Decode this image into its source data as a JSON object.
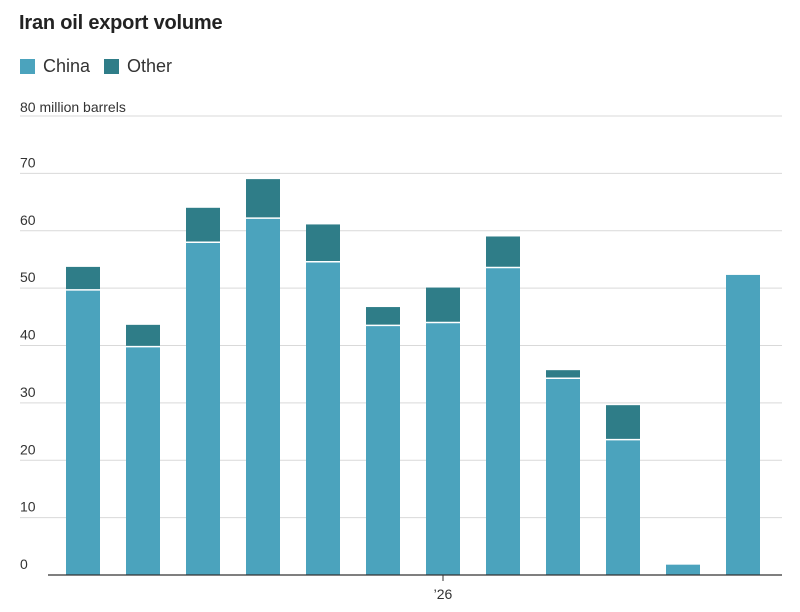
{
  "chart_data": {
    "type": "bar",
    "stacked": true,
    "title": "Iran oil export volume",
    "unit_label": "80 million barrels",
    "ylim": [
      0,
      80
    ],
    "yticks": [
      0,
      10,
      20,
      30,
      40,
      50,
      60,
      70
    ],
    "x_label_text": "’26",
    "x_label_index": 6,
    "series": [
      {
        "name": "China",
        "color": "#4ba3bd",
        "values": [
          49.7,
          39.8,
          58.0,
          62.2,
          54.6,
          43.5,
          44.0,
          53.6,
          34.3,
          23.6,
          1.8,
          52.3
        ]
      },
      {
        "name": "Other",
        "color": "#2f7d88",
        "values": [
          4.0,
          3.8,
          6.0,
          6.8,
          6.5,
          3.2,
          6.1,
          5.4,
          1.4,
          6.0,
          0,
          0
        ]
      }
    ],
    "grid": true
  }
}
